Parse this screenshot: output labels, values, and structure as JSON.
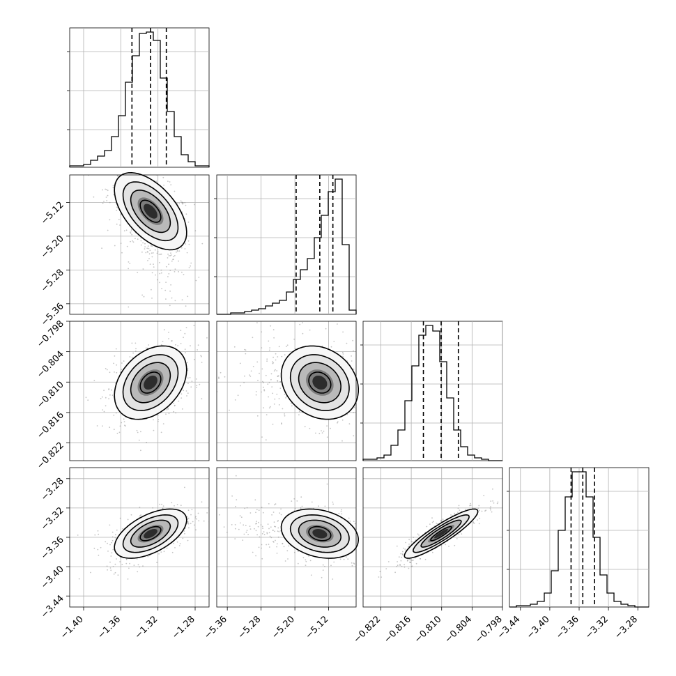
{
  "chart_data": {
    "type": "corner",
    "title": "",
    "grid": true,
    "parameters": [
      {
        "range": [
          -1.415,
          -1.265
        ],
        "ticks": [
          -1.4,
          -1.36,
          -1.32,
          -1.28
        ],
        "tick_labels": [
          "−1.40",
          "−1.36",
          "−1.32",
          "−1.28"
        ],
        "quantiles": [
          -1.348,
          -1.328,
          -1.311
        ]
      },
      {
        "range": [
          -5.385,
          -5.055
        ],
        "ticks": [
          -5.36,
          -5.28,
          -5.2,
          -5.12
        ],
        "tick_labels": [
          "−5.36",
          "−5.28",
          "−5.20",
          "−5.12"
        ],
        "quantiles": [
          -5.197,
          -5.141,
          -5.11
        ]
      },
      {
        "range": [
          -0.8255,
          -0.798
        ],
        "ticks": [
          -0.822,
          -0.816,
          -0.81,
          -0.804,
          -0.798
        ],
        "tick_labels": [
          "−0.822",
          "−0.816",
          "−0.810",
          "−0.804",
          "−0.798"
        ],
        "quantiles": [
          -0.8136,
          -0.8101,
          -0.8067
        ]
      },
      {
        "range": [
          -3.455,
          -3.265
        ],
        "ticks": [
          -3.44,
          -3.4,
          -3.36,
          -3.32,
          -3.28
        ],
        "tick_labels": [
          "−3.44",
          "−3.40",
          "−3.36",
          "−3.32",
          "−3.28"
        ],
        "quantiles": [
          -3.371,
          -3.355,
          -3.339
        ]
      }
    ],
    "histograms": [
      [
        0.01,
        0.01,
        0.02,
        0.05,
        0.08,
        0.12,
        0.22,
        0.37,
        0.61,
        0.8,
        0.96,
        0.97,
        0.91,
        0.64,
        0.4,
        0.22,
        0.09,
        0.04,
        0.01,
        0.01
      ],
      [
        0.0,
        0.0,
        0.01,
        0.01,
        0.02,
        0.03,
        0.04,
        0.06,
        0.08,
        0.1,
        0.16,
        0.25,
        0.32,
        0.4,
        0.55,
        0.71,
        0.88,
        0.97,
        0.5,
        0.03
      ],
      [
        0.01,
        0.01,
        0.02,
        0.04,
        0.11,
        0.22,
        0.43,
        0.68,
        0.9,
        0.97,
        0.93,
        0.71,
        0.45,
        0.22,
        0.1,
        0.04,
        0.02,
        0.01,
        0.0,
        0.0
      ],
      [
        0.0,
        0.01,
        0.01,
        0.02,
        0.04,
        0.1,
        0.26,
        0.55,
        0.79,
        0.97,
        0.97,
        0.79,
        0.5,
        0.23,
        0.1,
        0.04,
        0.02,
        0.01,
        0.0,
        0.0
      ]
    ],
    "correlations": [
      {
        "row": 1,
        "col": 0,
        "rho": -0.55
      },
      {
        "row": 2,
        "col": 0,
        "rho": 0.35
      },
      {
        "row": 2,
        "col": 1,
        "rho": -0.2
      },
      {
        "row": 3,
        "col": 0,
        "rho": 0.55
      },
      {
        "row": 3,
        "col": 1,
        "rho": -0.25
      },
      {
        "row": 3,
        "col": 2,
        "rho": 0.9
      }
    ]
  }
}
